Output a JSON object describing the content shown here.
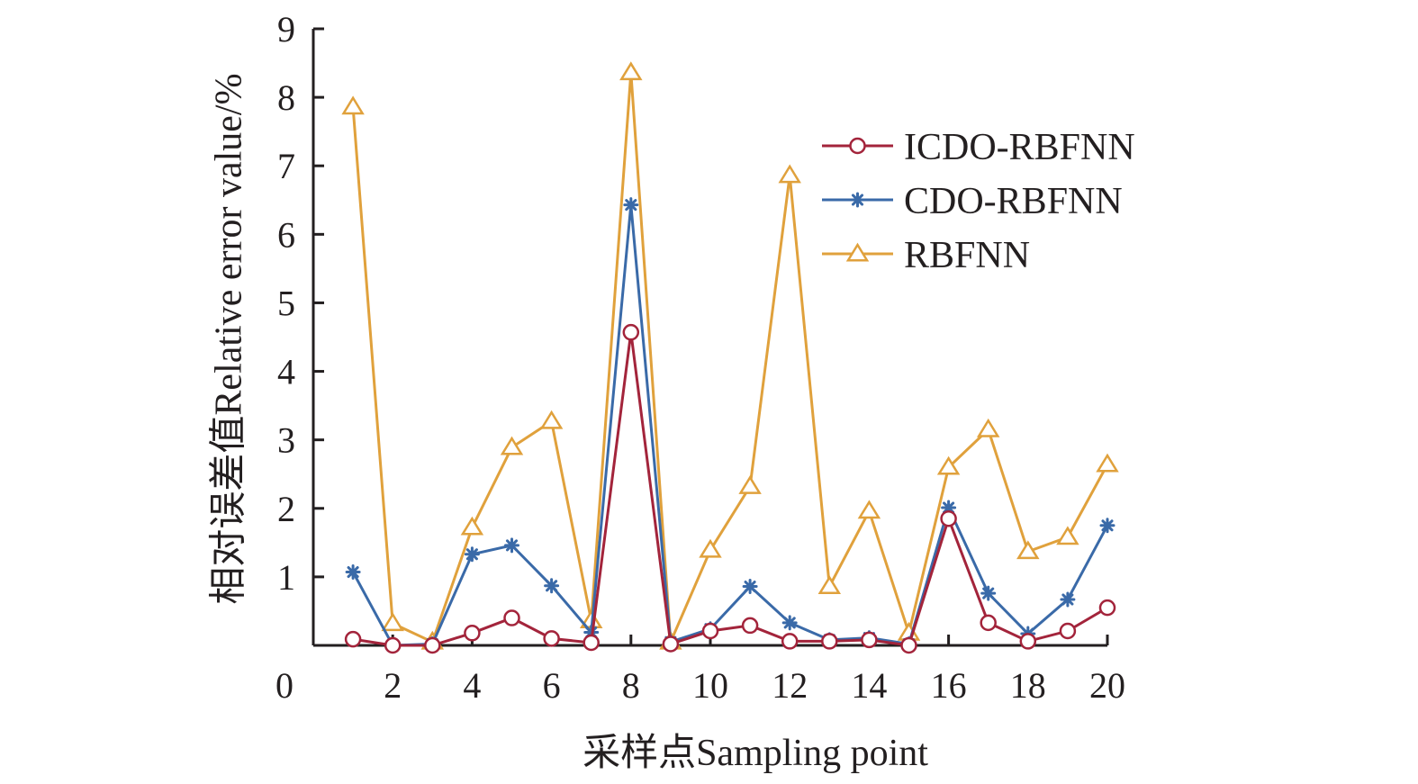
{
  "chart_data": {
    "type": "line",
    "title": "",
    "xlabel": "采样点Sampling point",
    "ylabel": "相对误差值Relative error value/%",
    "xlim": [
      0,
      20
    ],
    "ylim": [
      0,
      9
    ],
    "x_ticks": [
      0,
      2,
      4,
      6,
      8,
      10,
      12,
      14,
      16,
      18,
      20
    ],
    "x_tick_labels": [
      "0",
      "2",
      "4",
      "6",
      "8",
      "10",
      "12",
      "14",
      "16",
      "18",
      "20"
    ],
    "y_ticks": [
      1,
      2,
      3,
      4,
      5,
      6,
      7,
      8,
      9
    ],
    "y_tick_labels": [
      "1",
      "2",
      "3",
      "4",
      "5",
      "6",
      "7",
      "8",
      "9"
    ],
    "grid": false,
    "legend_position": "right",
    "x": [
      1,
      2,
      3,
      4,
      5,
      6,
      7,
      8,
      9,
      10,
      11,
      12,
      13,
      14,
      15,
      16,
      17,
      18,
      19,
      20
    ],
    "series": [
      {
        "name": "ICDO-RBFNN",
        "color": "#a3243b",
        "marker": "circle",
        "values": [
          0.09,
          0.0,
          0.0,
          0.18,
          0.4,
          0.1,
          0.04,
          4.57,
          0.02,
          0.21,
          0.29,
          0.06,
          0.06,
          0.08,
          0.0,
          1.85,
          0.33,
          0.06,
          0.21,
          0.55
        ]
      },
      {
        "name": "CDO-RBFNN",
        "color": "#3a6aa8",
        "marker": "asterisk",
        "values": [
          1.07,
          0.0,
          0.02,
          1.33,
          1.46,
          0.87,
          0.19,
          6.43,
          0.05,
          0.24,
          0.86,
          0.33,
          0.08,
          0.11,
          0.02,
          2.01,
          0.76,
          0.17,
          0.67,
          1.75
        ]
      },
      {
        "name": "RBFNN",
        "color": "#e0a13c",
        "marker": "triangle",
        "values": [
          7.86,
          0.32,
          0.05,
          1.72,
          2.89,
          3.27,
          0.36,
          8.36,
          0.05,
          1.39,
          2.32,
          6.86,
          0.86,
          1.96,
          0.18,
          2.6,
          3.15,
          1.37,
          1.58,
          2.64
        ]
      }
    ]
  }
}
